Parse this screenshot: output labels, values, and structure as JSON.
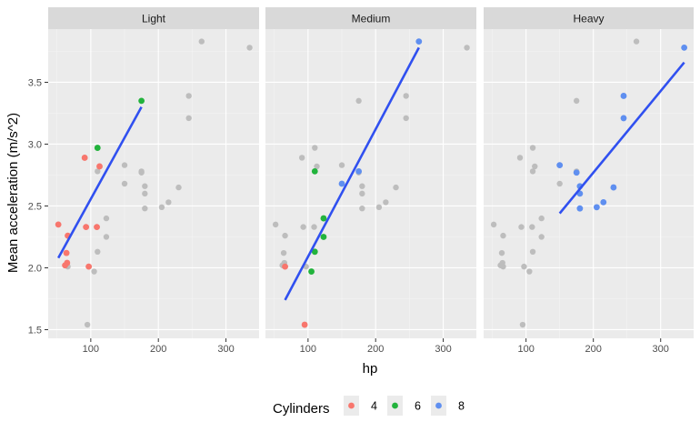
{
  "colors": {
    "panel_bg": "#ebebeb",
    "strip_bg": "#d9d9d9",
    "grid_major": "#ffffff",
    "grid_minor": "#f4f4f4",
    "ghost": "#bdbdbd",
    "fit_line": "#3050f0",
    "tick": "#333333",
    "legend_key_bg": "#ebebeb"
  },
  "chart_data": {
    "type": "scatter",
    "facets": [
      "Light",
      "Medium",
      "Heavy"
    ],
    "xlabel": "hp",
    "ylabel": "Mean acceleration (m/s^2)",
    "xlim": [
      37,
      349
    ],
    "ylim": [
      1.43,
      3.93
    ],
    "x_ticks": [
      100,
      200,
      300
    ],
    "x_tick_labels": [
      "100",
      "200",
      "300"
    ],
    "y_ticks": [
      1.5,
      2.0,
      2.5,
      3.0,
      3.5
    ],
    "y_tick_labels": [
      "1.5",
      "2.0",
      "2.5",
      "3.0",
      "3.5"
    ],
    "grid": true,
    "legend": {
      "title": "Cylinders",
      "position": "bottom",
      "entries": [
        {
          "label": "4",
          "color": "#f8766d"
        },
        {
          "label": "6",
          "color": "#22b33c"
        },
        {
          "label": "8",
          "color": "#5f8ff0"
        }
      ]
    },
    "points": [
      {
        "hp": 52,
        "y": 2.35,
        "cyl": "4",
        "weight": "Light"
      },
      {
        "hp": 62,
        "y": 2.02,
        "cyl": "4",
        "weight": "Light"
      },
      {
        "hp": 64,
        "y": 2.12,
        "cyl": "4",
        "weight": "Light"
      },
      {
        "hp": 65,
        "y": 2.04,
        "cyl": "4",
        "weight": "Light"
      },
      {
        "hp": 66,
        "y": 2.26,
        "cyl": "4",
        "weight": "Light"
      },
      {
        "hp": 91,
        "y": 2.89,
        "cyl": "4",
        "weight": "Light"
      },
      {
        "hp": 93,
        "y": 2.33,
        "cyl": "4",
        "weight": "Light"
      },
      {
        "hp": 95,
        "y": 1.54,
        "cyl": "4",
        "weight": "Medium"
      },
      {
        "hp": 97,
        "y": 2.01,
        "cyl": "4",
        "weight": "Light"
      },
      {
        "hp": 109,
        "y": 2.33,
        "cyl": "4",
        "weight": "Light"
      },
      {
        "hp": 113,
        "y": 2.82,
        "cyl": "4",
        "weight": "Light"
      },
      {
        "hp": 66,
        "y": 2.01,
        "cyl": "4",
        "weight": "Medium"
      },
      {
        "hp": 105,
        "y": 1.97,
        "cyl": "6",
        "weight": "Medium"
      },
      {
        "hp": 110,
        "y": 2.97,
        "cyl": "6",
        "weight": "Light"
      },
      {
        "hp": 110,
        "y": 2.78,
        "cyl": "6",
        "weight": "Medium"
      },
      {
        "hp": 110,
        "y": 2.13,
        "cyl": "6",
        "weight": "Medium"
      },
      {
        "hp": 123,
        "y": 2.4,
        "cyl": "6",
        "weight": "Medium"
      },
      {
        "hp": 123,
        "y": 2.25,
        "cyl": "6",
        "weight": "Medium"
      },
      {
        "hp": 175,
        "y": 3.35,
        "cyl": "6",
        "weight": "Light"
      },
      {
        "hp": 150,
        "y": 2.68,
        "cyl": "8",
        "weight": "Medium"
      },
      {
        "hp": 150,
        "y": 2.83,
        "cyl": "8",
        "weight": "Heavy"
      },
      {
        "hp": 175,
        "y": 2.78,
        "cyl": "8",
        "weight": "Medium"
      },
      {
        "hp": 175,
        "y": 2.77,
        "cyl": "8",
        "weight": "Heavy"
      },
      {
        "hp": 180,
        "y": 2.66,
        "cyl": "8",
        "weight": "Heavy"
      },
      {
        "hp": 180,
        "y": 2.6,
        "cyl": "8",
        "weight": "Heavy"
      },
      {
        "hp": 180,
        "y": 2.48,
        "cyl": "8",
        "weight": "Heavy"
      },
      {
        "hp": 205,
        "y": 2.49,
        "cyl": "8",
        "weight": "Heavy"
      },
      {
        "hp": 215,
        "y": 2.53,
        "cyl": "8",
        "weight": "Heavy"
      },
      {
        "hp": 230,
        "y": 2.65,
        "cyl": "8",
        "weight": "Heavy"
      },
      {
        "hp": 245,
        "y": 3.39,
        "cyl": "8",
        "weight": "Heavy"
      },
      {
        "hp": 245,
        "y": 3.21,
        "cyl": "8",
        "weight": "Heavy"
      },
      {
        "hp": 264,
        "y": 3.83,
        "cyl": "8",
        "weight": "Medium"
      },
      {
        "hp": 335,
        "y": 3.78,
        "cyl": "8",
        "weight": "Heavy"
      }
    ],
    "fit_lines": [
      {
        "facet": "Light",
        "x": [
          52,
          175
        ],
        "y": [
          2.08,
          3.3
        ]
      },
      {
        "facet": "Medium",
        "x": [
          66,
          264
        ],
        "y": [
          1.74,
          3.78
        ]
      },
      {
        "facet": "Heavy",
        "x": [
          150,
          335
        ],
        "y": [
          2.44,
          3.66
        ]
      }
    ]
  }
}
